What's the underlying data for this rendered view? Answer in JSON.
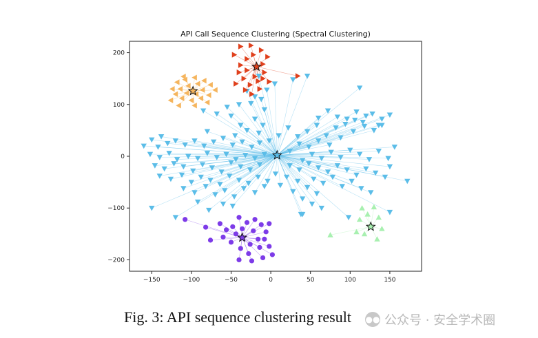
{
  "chart_data": {
    "type": "scatter",
    "title": "API Call Sequence Clustering (Spectral Clustering)",
    "xlabel": "",
    "ylabel": "",
    "xlim": [
      -178,
      190
    ],
    "ylim": [
      -222,
      222
    ],
    "xticks": [
      -150,
      -100,
      -50,
      0,
      50,
      100,
      150
    ],
    "yticks": [
      -200,
      -100,
      0,
      100,
      200
    ],
    "xtick_labels": [
      "−150",
      "−100",
      "−50",
      "0",
      "50",
      "100",
      "150"
    ],
    "ytick_labels": [
      "−200",
      "−100",
      "0",
      "100",
      "200"
    ],
    "grid": false,
    "legend": "none",
    "clusters": [
      {
        "name": "cluster-blue",
        "color": "#5bbde8",
        "marker": "triangle-down",
        "centroid": [
          8,
          2
        ],
        "points": [
          [
            -160,
            20
          ],
          [
            -150,
            32
          ],
          [
            -138,
            38
          ],
          [
            -142,
            18
          ],
          [
            -130,
            25
          ],
          [
            -120,
            30
          ],
          [
            -108,
            22
          ],
          [
            -96,
            30
          ],
          [
            -84,
            20
          ],
          [
            -72,
            28
          ],
          [
            -60,
            35
          ],
          [
            -48,
            22
          ],
          [
            -36,
            28
          ],
          [
            -24,
            18
          ],
          [
            -14,
            26
          ],
          [
            -2,
            30
          ],
          [
            -152,
            4
          ],
          [
            -140,
            -2
          ],
          [
            -128,
            6
          ],
          [
            -118,
            -6
          ],
          [
            -104,
            0
          ],
          [
            -92,
            -4
          ],
          [
            -80,
            6
          ],
          [
            -68,
            -2
          ],
          [
            -56,
            4
          ],
          [
            -44,
            -6
          ],
          [
            -32,
            2
          ],
          [
            -20,
            -4
          ],
          [
            -8,
            4
          ],
          [
            -146,
            -18
          ],
          [
            -134,
            -24
          ],
          [
            -122,
            -14
          ],
          [
            -110,
            -20
          ],
          [
            -98,
            -28
          ],
          [
            -86,
            -16
          ],
          [
            -74,
            -22
          ],
          [
            -62,
            -30
          ],
          [
            -50,
            -12
          ],
          [
            -38,
            -20
          ],
          [
            -26,
            -26
          ],
          [
            -14,
            -16
          ],
          [
            -140,
            -38
          ],
          [
            -126,
            -44
          ],
          [
            -112,
            -36
          ],
          [
            -100,
            -50
          ],
          [
            -88,
            -40
          ],
          [
            -76,
            -46
          ],
          [
            -64,
            -54
          ],
          [
            -52,
            -38
          ],
          [
            -40,
            -46
          ],
          [
            -28,
            -52
          ],
          [
            -16,
            -40
          ],
          [
            -4,
            -48
          ],
          [
            -110,
            -62
          ],
          [
            -96,
            -70
          ],
          [
            -82,
            -58
          ],
          [
            -70,
            -74
          ],
          [
            -58,
            -66
          ],
          [
            -46,
            -78
          ],
          [
            -34,
            -62
          ],
          [
            -20,
            -70
          ],
          [
            -8,
            -58
          ],
          [
            -150,
            -100
          ],
          [
            -120,
            -118
          ],
          [
            -92,
            -88
          ],
          [
            -78,
            -104
          ],
          [
            -60,
            -92
          ],
          [
            -48,
            -96
          ],
          [
            6,
            -34
          ],
          [
            12,
            -56
          ],
          [
            20,
            -40
          ],
          [
            28,
            -68
          ],
          [
            34,
            -48
          ],
          [
            40,
            -82
          ],
          [
            46,
            -60
          ],
          [
            52,
            -92
          ],
          [
            58,
            -72
          ],
          [
            64,
            -100
          ],
          [
            40,
            -112
          ],
          [
            -20,
            115
          ],
          [
            -30,
            126
          ],
          [
            -12,
            110
          ],
          [
            -40,
            100
          ],
          [
            -5,
            128
          ],
          [
            -25,
            102
          ],
          [
            -55,
            95
          ],
          [
            -68,
            82
          ],
          [
            -50,
            78
          ],
          [
            -38,
            60
          ],
          [
            -20,
            72
          ],
          [
            -10,
            60
          ],
          [
            -30,
            50
          ],
          [
            -15,
            45
          ],
          [
            -45,
            40
          ],
          [
            -85,
            88
          ],
          [
            -80,
            48
          ],
          [
            10,
            40
          ],
          [
            22,
            55
          ],
          [
            34,
            38
          ],
          [
            46,
            48
          ],
          [
            58,
            60
          ],
          [
            70,
            40
          ],
          [
            82,
            55
          ],
          [
            94,
            62
          ],
          [
            106,
            70
          ],
          [
            118,
            58
          ],
          [
            130,
            50
          ],
          [
            140,
            72
          ],
          [
            150,
            80
          ],
          [
            136,
            60
          ],
          [
            120,
            78
          ],
          [
            104,
            48
          ],
          [
            88,
            36
          ],
          [
            74,
            22
          ],
          [
            60,
            30
          ],
          [
            48,
            18
          ],
          [
            36,
            24
          ],
          [
            24,
            10
          ],
          [
            40,
            -8
          ],
          [
            52,
            4
          ],
          [
            64,
            -4
          ],
          [
            76,
            8
          ],
          [
            88,
            -2
          ],
          [
            100,
            12
          ],
          [
            112,
            4
          ],
          [
            124,
            -6
          ],
          [
            136,
            10
          ],
          [
            148,
            -4
          ],
          [
            156,
            18
          ],
          [
            24,
            -18
          ],
          [
            36,
            -26
          ],
          [
            48,
            -14
          ],
          [
            60,
            -22
          ],
          [
            72,
            -30
          ],
          [
            84,
            -18
          ],
          [
            96,
            -26
          ],
          [
            108,
            -36
          ],
          [
            120,
            -24
          ],
          [
            132,
            -32
          ],
          [
            144,
            -40
          ],
          [
            150,
            -20
          ],
          [
            54,
            -44
          ],
          [
            66,
            -52
          ],
          [
            78,
            -40
          ],
          [
            90,
            -58
          ],
          [
            102,
            -48
          ],
          [
            114,
            -62
          ],
          [
            126,
            -70
          ],
          [
            96,
            72
          ],
          [
            108,
            86
          ],
          [
            116,
            66
          ],
          [
            128,
            82
          ],
          [
            140,
            60
          ],
          [
            72,
            88
          ],
          [
            84,
            76
          ],
          [
            60,
            74
          ],
          [
            112,
            132
          ],
          [
            172,
            -48
          ],
          [
            150,
            -108
          ],
          [
            98,
            -118
          ],
          [
            38,
            -112
          ],
          [
            46,
            155
          ],
          [
            -15,
            155
          ],
          [
            5,
            140
          ],
          [
            28,
            148
          ],
          [
            -8,
            90
          ]
        ]
      },
      {
        "name": "cluster-orange",
        "color": "#f5b55e",
        "marker": "triangle-left",
        "centroid": [
          -98,
          126
        ],
        "points": [
          [
            -118,
            143
          ],
          [
            -108,
            148
          ],
          [
            -96,
            152
          ],
          [
            -84,
            146
          ],
          [
            -76,
            138
          ],
          [
            -70,
            128
          ],
          [
            -78,
            118
          ],
          [
            -88,
            112
          ],
          [
            -100,
            108
          ],
          [
            -112,
            112
          ],
          [
            -120,
            120
          ],
          [
            -124,
            130
          ],
          [
            -114,
            130
          ],
          [
            -104,
            136
          ],
          [
            -92,
            140
          ],
          [
            -86,
            128
          ],
          [
            -94,
            120
          ],
          [
            -106,
            122
          ],
          [
            -116,
            98
          ],
          [
            -96,
            98
          ],
          [
            -80,
            104
          ],
          [
            -126,
            108
          ],
          [
            -110,
            154
          ]
        ]
      },
      {
        "name": "cluster-red",
        "color": "#e0401c",
        "marker": "triangle-right",
        "centroid": [
          -18,
          173
        ],
        "points": [
          [
            -38,
            212
          ],
          [
            -25,
            214
          ],
          [
            -12,
            205
          ],
          [
            -4,
            192
          ],
          [
            -10,
            178
          ],
          [
            -8,
            162
          ],
          [
            -2,
            144
          ],
          [
            -14,
            130
          ],
          [
            -26,
            138
          ],
          [
            -34,
            150
          ],
          [
            -40,
            162
          ],
          [
            -38,
            176
          ],
          [
            -30,
            188
          ],
          [
            -22,
            196
          ],
          [
            -30,
            166
          ],
          [
            -20,
            154
          ],
          [
            -10,
            150
          ],
          [
            -24,
            120
          ],
          [
            -32,
            128
          ],
          [
            -44,
            140
          ],
          [
            -46,
            196
          ],
          [
            -16,
            145
          ],
          [
            34,
            155
          ]
        ]
      },
      {
        "name": "cluster-purple",
        "color": "#7d3be8",
        "marker": "circle",
        "centroid": [
          -36,
          -157
        ],
        "points": [
          [
            -108,
            -122
          ],
          [
            -82,
            -137
          ],
          [
            -64,
            -130
          ],
          [
            -56,
            -142
          ],
          [
            -60,
            -156
          ],
          [
            -50,
            -166
          ],
          [
            -44,
            -150
          ],
          [
            -36,
            -140
          ],
          [
            -30,
            -128
          ],
          [
            -22,
            -144
          ],
          [
            -12,
            -132
          ],
          [
            -6,
            -146
          ],
          [
            -16,
            -160
          ],
          [
            -26,
            -170
          ],
          [
            -38,
            -178
          ],
          [
            -48,
            -136
          ],
          [
            -40,
            -118
          ],
          [
            -20,
            -122
          ],
          [
            -8,
            -160
          ],
          [
            -2,
            -174
          ],
          [
            -28,
            -188
          ],
          [
            -40,
            -200
          ],
          [
            -24,
            -202
          ],
          [
            -10,
            -196
          ],
          [
            -76,
            -162
          ],
          [
            -2,
            -130
          ],
          [
            -14,
            -176
          ],
          [
            2,
            -190
          ]
        ]
      },
      {
        "name": "cluster-green",
        "color": "#a8f0b0",
        "marker": "triangle-up",
        "centroid": [
          126,
          -136
        ],
        "points": [
          [
            115,
            -100
          ],
          [
            130,
            -98
          ],
          [
            122,
            -112
          ],
          [
            136,
            -118
          ],
          [
            112,
            -122
          ],
          [
            140,
            -140
          ],
          [
            118,
            -150
          ],
          [
            134,
            -160
          ],
          [
            108,
            -146
          ],
          [
            75,
            -152
          ]
        ]
      }
    ]
  },
  "caption": "Fig. 3: API sequence clustering result",
  "watermark": {
    "text": "公众号 · 安全学术圈",
    "icon": "wechat-icon"
  }
}
